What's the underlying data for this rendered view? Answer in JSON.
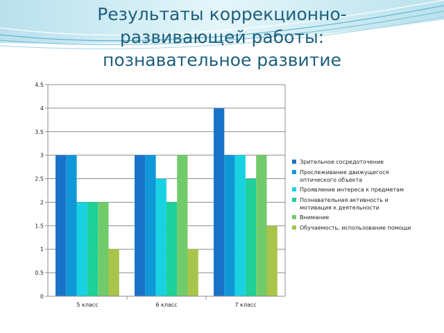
{
  "slide": {
    "title_lines": [
      "Результаты коррекционно-",
      "развивающей работы:",
      "познавательное развитие"
    ]
  },
  "chart_data": {
    "type": "bar",
    "categories": [
      "5 класс",
      "6 класс",
      "7 класс"
    ],
    "ylim": [
      0,
      4.5
    ],
    "yticks": [
      "0",
      "0.5",
      "1",
      "1.5",
      "2",
      "2.5",
      "3",
      "3.5",
      "4",
      "4.5"
    ],
    "grid": true,
    "legend_position": "right",
    "series": [
      {
        "name": "Зрительное сосредоточение",
        "values": [
          3,
          3,
          4
        ],
        "color": "#1a73c8"
      },
      {
        "name": "Прослеживание движущегося оптического объекта",
        "values": [
          3,
          3,
          3
        ],
        "color": "#0f97d8"
      },
      {
        "name": "Проявление интереса к предметам",
        "values": [
          2,
          2.5,
          3
        ],
        "color": "#18d2e2"
      },
      {
        "name": "Познавательная активность и мотивация к деятельности",
        "values": [
          2,
          2,
          2.5
        ],
        "color": "#1ed09a"
      },
      {
        "name": "Внимание",
        "values": [
          2,
          3,
          3
        ],
        "color": "#72cb6a"
      },
      {
        "name": "Обучаемость, использование помощи",
        "values": [
          1,
          1,
          1.5
        ],
        "color": "#a8c44a"
      }
    ],
    "legend_lines": [
      [
        "Зрительное сосредоточение"
      ],
      [
        "Прослеживание движущегося",
        "оптического объекта"
      ],
      [
        "Проявление интереса к предметам"
      ],
      [
        "Познавательная активность и",
        "мотивация к деятельности"
      ],
      [
        "Внимание"
      ],
      [
        "Обучаемость, использование помощи"
      ]
    ]
  }
}
